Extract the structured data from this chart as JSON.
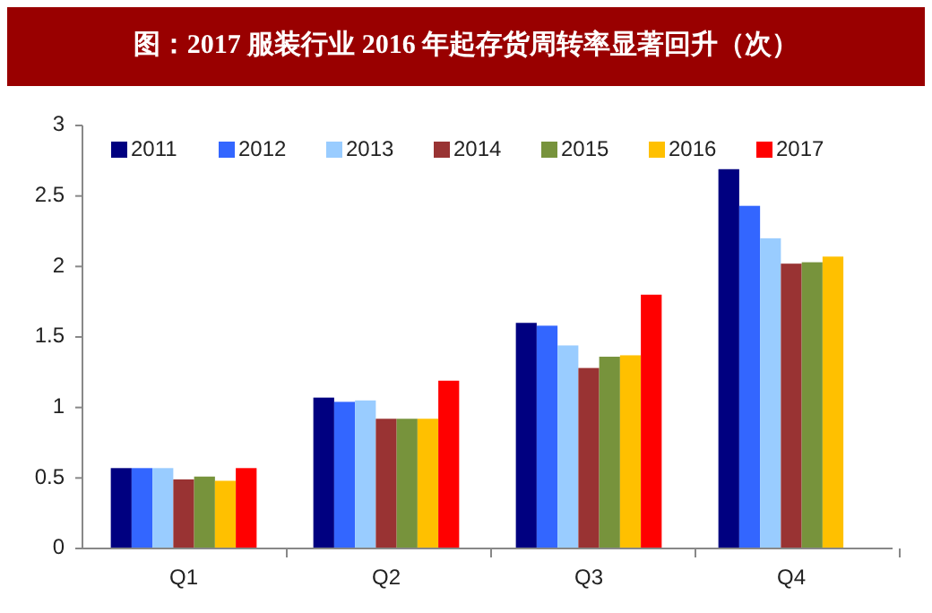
{
  "chart_data": {
    "type": "bar",
    "title": "图：2017 服装行业 2016 年起存货周转率显著回升（次）",
    "categories": [
      "Q1",
      "Q2",
      "Q3",
      "Q4"
    ],
    "series": [
      {
        "name": "2011",
        "color": "#000080",
        "values": [
          0.57,
          1.07,
          1.6,
          2.69
        ]
      },
      {
        "name": "2012",
        "color": "#3366ff",
        "values": [
          0.57,
          1.04,
          1.58,
          2.43
        ]
      },
      {
        "name": "2013",
        "color": "#99ccff",
        "values": [
          0.57,
          1.05,
          1.44,
          2.2
        ]
      },
      {
        "name": "2014",
        "color": "#993333",
        "values": [
          0.49,
          0.92,
          1.28,
          2.02
        ]
      },
      {
        "name": "2015",
        "color": "#77933c",
        "values": [
          0.51,
          0.92,
          1.36,
          2.03
        ]
      },
      {
        "name": "2016",
        "color": "#ffc000",
        "values": [
          0.48,
          0.92,
          1.37,
          2.07
        ]
      },
      {
        "name": "2017",
        "color": "#ff0000",
        "values": [
          0.57,
          1.19,
          1.8,
          null
        ]
      }
    ],
    "ylim": [
      0,
      3
    ],
    "yticks": [
      0,
      0.5,
      1,
      1.5,
      2,
      2.5,
      3
    ],
    "legend": "top left",
    "grid": false
  }
}
